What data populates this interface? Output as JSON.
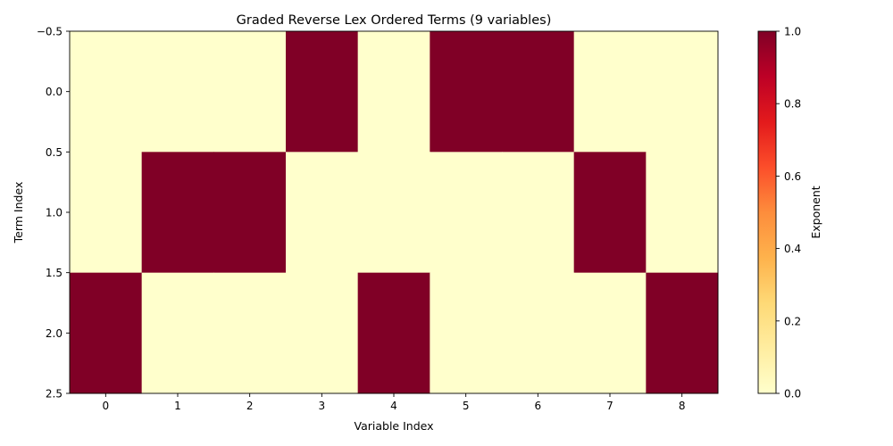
{
  "chart_data": {
    "type": "heatmap",
    "title": "Graded Reverse Lex Ordered Terms (9 variables)",
    "xlabel": "Variable Index",
    "ylabel": "Term Index",
    "x_ticks": [
      "0",
      "1",
      "2",
      "3",
      "4",
      "5",
      "6",
      "7",
      "8"
    ],
    "y_ticks": [
      "−0.5",
      "0.0",
      "0.5",
      "1.0",
      "1.5",
      "2.0",
      "2.5"
    ],
    "y_tick_values": [
      -0.5,
      0.0,
      0.5,
      1.0,
      1.5,
      2.0,
      2.5
    ],
    "x_range": [
      -0.5,
      8.5
    ],
    "y_range": [
      -0.5,
      2.5
    ],
    "values": [
      [
        0,
        0,
        0,
        1,
        0,
        1,
        1,
        0,
        0
      ],
      [
        0,
        1,
        1,
        0,
        0,
        0,
        0,
        1,
        0
      ],
      [
        1,
        0,
        0,
        0,
        1,
        0,
        0,
        0,
        1
      ]
    ],
    "colormap": "YlOrRd",
    "colorbar": {
      "label": "Exponent",
      "ticks": [
        "0.0",
        "0.2",
        "0.4",
        "0.6",
        "0.8",
        "1.0"
      ],
      "tick_values": [
        0,
        0.2,
        0.4,
        0.6,
        0.8,
        1.0
      ],
      "vmin": 0,
      "vmax": 1
    },
    "colors": {
      "low": "#ffffcc",
      "high": "#800026"
    }
  }
}
